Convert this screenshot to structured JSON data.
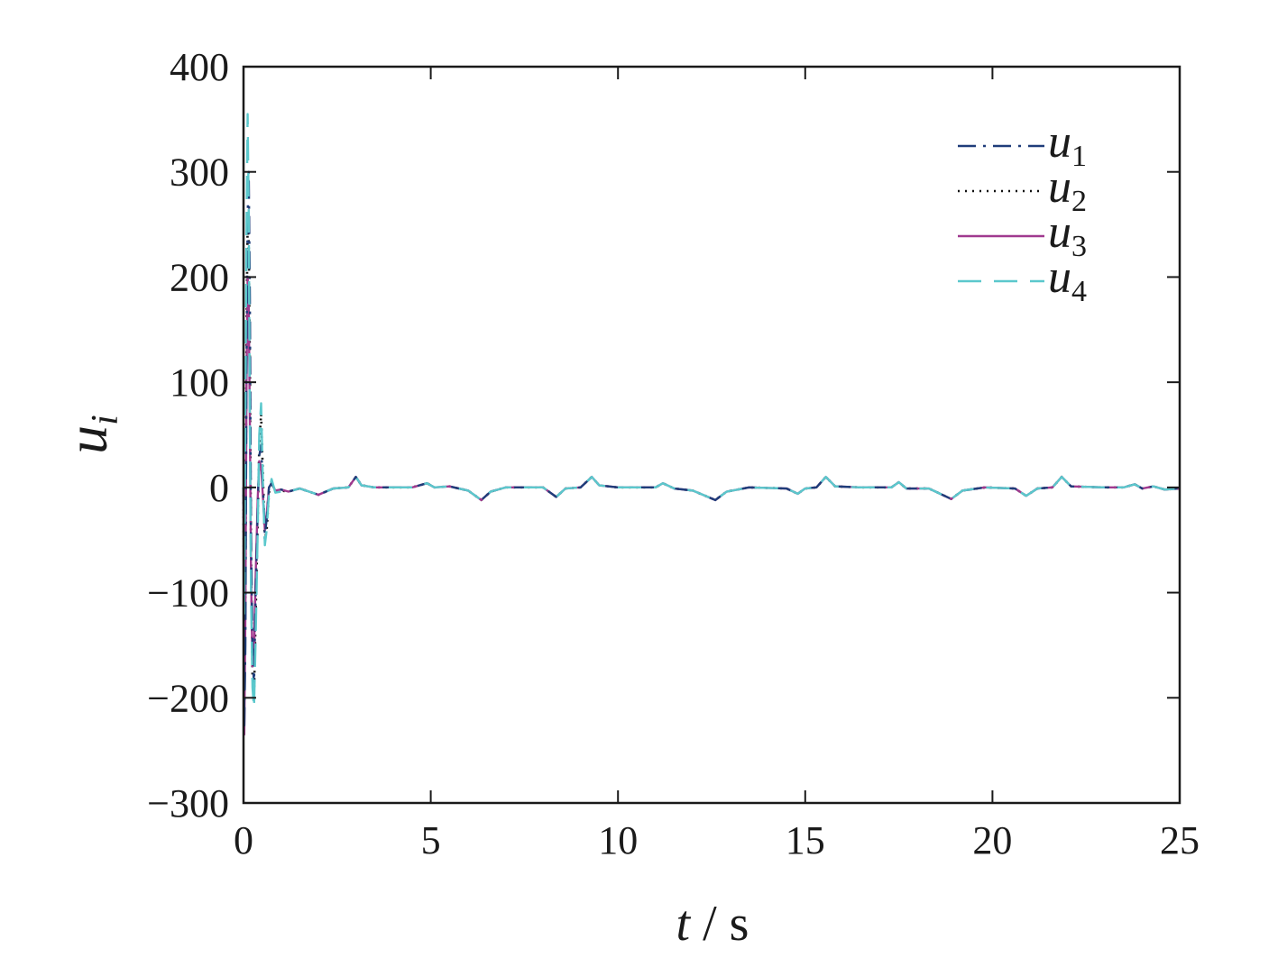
{
  "chart_data": {
    "type": "line",
    "title": "",
    "xlabel": {
      "var": "t",
      "unit": " / s"
    },
    "ylabel": {
      "var": "u",
      "sub": "i"
    },
    "xlim": [
      0,
      25
    ],
    "ylim": [
      -300,
      400
    ],
    "xticks": [
      "0",
      "5",
      "10",
      "15",
      "20",
      "25"
    ],
    "yticks": [
      "400",
      "300",
      "200",
      "100",
      "0",
      "−100",
      "−200",
      "−300"
    ],
    "xtick_values": [
      0,
      5,
      10,
      15,
      20,
      25
    ],
    "ytick_values": [
      400,
      300,
      200,
      100,
      0,
      -100,
      -200,
      -300
    ],
    "grid": false,
    "legend_position": "top-right",
    "series": [
      {
        "name": "u1",
        "name_var": "u",
        "name_sub": "1",
        "color": "#1f3d7a",
        "style": "dashdot",
        "points": [
          [
            0,
            0
          ],
          [
            0.02,
            -230
          ],
          [
            0.05,
            -150
          ],
          [
            0.08,
            120
          ],
          [
            0.11,
            260
          ],
          [
            0.14,
            300
          ],
          [
            0.17,
            180
          ],
          [
            0.2,
            -40
          ],
          [
            0.24,
            -150
          ],
          [
            0.28,
            -190
          ],
          [
            0.32,
            -110
          ],
          [
            0.38,
            -20
          ],
          [
            0.42,
            30
          ],
          [
            0.47,
            40
          ],
          [
            0.52,
            0
          ],
          [
            0.57,
            -45
          ],
          [
            0.62,
            -30
          ],
          [
            0.68,
            0
          ],
          [
            0.75,
            4
          ],
          [
            0.85,
            -3
          ],
          [
            1.0,
            -2
          ],
          [
            1.2,
            -4
          ],
          [
            1.5,
            -1
          ],
          [
            2.0,
            -7
          ],
          [
            2.4,
            -1
          ],
          [
            2.8,
            0
          ],
          [
            3.0,
            10
          ],
          [
            3.15,
            2
          ],
          [
            3.5,
            0
          ],
          [
            4.5,
            0
          ],
          [
            4.9,
            4
          ],
          [
            5.1,
            0
          ],
          [
            5.5,
            1
          ],
          [
            6.0,
            -3
          ],
          [
            6.35,
            -12
          ],
          [
            6.6,
            -4
          ],
          [
            7.0,
            0
          ],
          [
            8.0,
            0
          ],
          [
            8.35,
            -9
          ],
          [
            8.6,
            -1
          ],
          [
            9.0,
            0
          ],
          [
            9.3,
            10
          ],
          [
            9.5,
            2
          ],
          [
            10.0,
            0
          ],
          [
            11.0,
            0
          ],
          [
            11.2,
            4
          ],
          [
            11.5,
            -1
          ],
          [
            12.0,
            -3
          ],
          [
            12.6,
            -12
          ],
          [
            12.9,
            -4
          ],
          [
            13.5,
            0
          ],
          [
            14.5,
            -1
          ],
          [
            14.8,
            -6
          ],
          [
            15.0,
            -1
          ],
          [
            15.3,
            0
          ],
          [
            15.55,
            10
          ],
          [
            15.8,
            1
          ],
          [
            16.5,
            0
          ],
          [
            17.3,
            0
          ],
          [
            17.5,
            5
          ],
          [
            17.7,
            -1
          ],
          [
            18.3,
            -1
          ],
          [
            18.9,
            -11
          ],
          [
            19.2,
            -3
          ],
          [
            19.8,
            0
          ],
          [
            20.6,
            -1
          ],
          [
            20.9,
            -8
          ],
          [
            21.2,
            -1
          ],
          [
            21.6,
            0
          ],
          [
            21.85,
            10
          ],
          [
            22.1,
            1
          ],
          [
            23.0,
            0
          ],
          [
            23.5,
            0
          ],
          [
            23.8,
            3
          ],
          [
            24.0,
            -1
          ],
          [
            24.3,
            1
          ],
          [
            24.6,
            -2
          ],
          [
            25.0,
            -1
          ]
        ]
      },
      {
        "name": "u2",
        "name_var": "u",
        "name_sub": "2",
        "color": "#111111",
        "style": "dotted",
        "points": [
          [
            0,
            0
          ],
          [
            0.02,
            -200
          ],
          [
            0.05,
            -100
          ],
          [
            0.08,
            150
          ],
          [
            0.11,
            250
          ],
          [
            0.14,
            230
          ],
          [
            0.17,
            120
          ],
          [
            0.2,
            -60
          ],
          [
            0.24,
            -180
          ],
          [
            0.28,
            -200
          ],
          [
            0.32,
            -130
          ],
          [
            0.38,
            -30
          ],
          [
            0.42,
            40
          ],
          [
            0.47,
            70
          ],
          [
            0.52,
            10
          ],
          [
            0.57,
            -50
          ],
          [
            0.62,
            -40
          ],
          [
            0.68,
            -5
          ],
          [
            0.75,
            5
          ],
          [
            0.85,
            -4
          ],
          [
            1.0,
            -3
          ],
          [
            1.2,
            -4
          ],
          [
            1.5,
            -1
          ],
          [
            2.0,
            -7
          ],
          [
            2.4,
            -1
          ],
          [
            2.8,
            0
          ],
          [
            3.0,
            10
          ],
          [
            3.15,
            2
          ],
          [
            3.5,
            0
          ],
          [
            4.5,
            0
          ],
          [
            4.9,
            4
          ],
          [
            5.1,
            0
          ],
          [
            5.5,
            1
          ],
          [
            6.0,
            -3
          ],
          [
            6.35,
            -12
          ],
          [
            6.6,
            -4
          ],
          [
            7.0,
            0
          ],
          [
            8.0,
            0
          ],
          [
            8.35,
            -9
          ],
          [
            8.6,
            -1
          ],
          [
            9.0,
            0
          ],
          [
            9.3,
            10
          ],
          [
            9.5,
            2
          ],
          [
            10.0,
            0
          ],
          [
            11.0,
            0
          ],
          [
            11.2,
            4
          ],
          [
            11.5,
            -1
          ],
          [
            12.0,
            -3
          ],
          [
            12.6,
            -12
          ],
          [
            12.9,
            -4
          ],
          [
            13.5,
            0
          ],
          [
            14.5,
            -1
          ],
          [
            14.8,
            -6
          ],
          [
            15.0,
            -1
          ],
          [
            15.3,
            0
          ],
          [
            15.55,
            10
          ],
          [
            15.8,
            1
          ],
          [
            16.5,
            0
          ],
          [
            17.3,
            0
          ],
          [
            17.5,
            5
          ],
          [
            17.7,
            -1
          ],
          [
            18.3,
            -1
          ],
          [
            18.9,
            -11
          ],
          [
            19.2,
            -3
          ],
          [
            19.8,
            0
          ],
          [
            20.6,
            -1
          ],
          [
            20.9,
            -8
          ],
          [
            21.2,
            -1
          ],
          [
            21.6,
            0
          ],
          [
            21.85,
            10
          ],
          [
            22.1,
            1
          ],
          [
            23.0,
            0
          ],
          [
            23.5,
            0
          ],
          [
            23.8,
            3
          ],
          [
            24.0,
            -1
          ],
          [
            24.3,
            1
          ],
          [
            24.6,
            -2
          ],
          [
            25.0,
            -1
          ]
        ]
      },
      {
        "name": "u3",
        "name_var": "u",
        "name_sub": "3",
        "color": "#a0398f",
        "style": "solid",
        "points": [
          [
            0,
            0
          ],
          [
            0.02,
            -235
          ],
          [
            0.05,
            -120
          ],
          [
            0.08,
            100
          ],
          [
            0.11,
            200
          ],
          [
            0.14,
            170
          ],
          [
            0.17,
            60
          ],
          [
            0.2,
            -80
          ],
          [
            0.24,
            -170
          ],
          [
            0.28,
            -160
          ],
          [
            0.32,
            -90
          ],
          [
            0.38,
            -10
          ],
          [
            0.42,
            25
          ],
          [
            0.47,
            20
          ],
          [
            0.52,
            -10
          ],
          [
            0.57,
            -40
          ],
          [
            0.62,
            -25
          ],
          [
            0.68,
            0
          ],
          [
            0.75,
            4
          ],
          [
            0.85,
            -3
          ],
          [
            1.0,
            -2
          ],
          [
            1.2,
            -4
          ],
          [
            1.5,
            -1
          ],
          [
            2.0,
            -7
          ],
          [
            2.4,
            -1
          ],
          [
            2.8,
            0
          ],
          [
            3.0,
            10
          ],
          [
            3.15,
            2
          ],
          [
            3.5,
            0
          ],
          [
            4.5,
            0
          ],
          [
            4.9,
            4
          ],
          [
            5.1,
            0
          ],
          [
            5.5,
            1
          ],
          [
            6.0,
            -3
          ],
          [
            6.35,
            -12
          ],
          [
            6.6,
            -4
          ],
          [
            7.0,
            0
          ],
          [
            8.0,
            0
          ],
          [
            8.35,
            -9
          ],
          [
            8.6,
            -1
          ],
          [
            9.0,
            0
          ],
          [
            9.3,
            10
          ],
          [
            9.5,
            2
          ],
          [
            10.0,
            0
          ],
          [
            11.0,
            0
          ],
          [
            11.2,
            4
          ],
          [
            11.5,
            -1
          ],
          [
            12.0,
            -3
          ],
          [
            12.6,
            -12
          ],
          [
            12.9,
            -4
          ],
          [
            13.5,
            0
          ],
          [
            14.5,
            -1
          ],
          [
            14.8,
            -6
          ],
          [
            15.0,
            -1
          ],
          [
            15.3,
            0
          ],
          [
            15.55,
            10
          ],
          [
            15.8,
            1
          ],
          [
            16.5,
            0
          ],
          [
            17.3,
            0
          ],
          [
            17.5,
            5
          ],
          [
            17.7,
            -1
          ],
          [
            18.3,
            -1
          ],
          [
            18.9,
            -11
          ],
          [
            19.2,
            -3
          ],
          [
            19.8,
            0
          ],
          [
            20.6,
            -1
          ],
          [
            20.9,
            -8
          ],
          [
            21.2,
            -1
          ],
          [
            21.6,
            0
          ],
          [
            21.85,
            10
          ],
          [
            22.1,
            1
          ],
          [
            23.0,
            0
          ],
          [
            23.5,
            0
          ],
          [
            23.8,
            3
          ],
          [
            24.0,
            -1
          ],
          [
            24.3,
            1
          ],
          [
            24.6,
            -2
          ],
          [
            25.0,
            -1
          ]
        ]
      },
      {
        "name": "u4",
        "name_var": "u",
        "name_sub": "4",
        "color": "#5bc8cc",
        "style": "dashed",
        "points": [
          [
            0,
            0
          ],
          [
            0.02,
            -120
          ],
          [
            0.05,
            80
          ],
          [
            0.08,
            240
          ],
          [
            0.11,
            355
          ],
          [
            0.14,
            260
          ],
          [
            0.17,
            60
          ],
          [
            0.2,
            -100
          ],
          [
            0.24,
            -190
          ],
          [
            0.28,
            -210
          ],
          [
            0.32,
            -150
          ],
          [
            0.38,
            -40
          ],
          [
            0.42,
            50
          ],
          [
            0.47,
            80
          ],
          [
            0.52,
            0
          ],
          [
            0.57,
            -55
          ],
          [
            0.62,
            -40
          ],
          [
            0.68,
            -5
          ],
          [
            0.75,
            8
          ],
          [
            0.85,
            -5
          ],
          [
            1.0,
            -4
          ],
          [
            1.2,
            -4
          ],
          [
            1.5,
            -1
          ],
          [
            2.0,
            -7
          ],
          [
            2.4,
            -1
          ],
          [
            2.8,
            0
          ],
          [
            3.0,
            10
          ],
          [
            3.15,
            2
          ],
          [
            3.5,
            0
          ],
          [
            4.5,
            0
          ],
          [
            4.9,
            4
          ],
          [
            5.1,
            0
          ],
          [
            5.5,
            1
          ],
          [
            6.0,
            -3
          ],
          [
            6.35,
            -12
          ],
          [
            6.6,
            -4
          ],
          [
            7.0,
            0
          ],
          [
            8.0,
            0
          ],
          [
            8.35,
            -9
          ],
          [
            8.6,
            -1
          ],
          [
            9.0,
            0
          ],
          [
            9.3,
            10
          ],
          [
            9.5,
            2
          ],
          [
            10.0,
            0
          ],
          [
            11.0,
            0
          ],
          [
            11.2,
            4
          ],
          [
            11.5,
            -1
          ],
          [
            12.0,
            -3
          ],
          [
            12.6,
            -12
          ],
          [
            12.9,
            -4
          ],
          [
            13.5,
            0
          ],
          [
            14.5,
            -1
          ],
          [
            14.8,
            -6
          ],
          [
            15.0,
            -1
          ],
          [
            15.3,
            0
          ],
          [
            15.55,
            10
          ],
          [
            15.8,
            1
          ],
          [
            16.5,
            0
          ],
          [
            17.3,
            0
          ],
          [
            17.5,
            5
          ],
          [
            17.7,
            -1
          ],
          [
            18.3,
            -1
          ],
          [
            18.9,
            -11
          ],
          [
            19.2,
            -3
          ],
          [
            19.8,
            0
          ],
          [
            20.6,
            -1
          ],
          [
            20.9,
            -8
          ],
          [
            21.2,
            -1
          ],
          [
            21.6,
            0
          ],
          [
            21.85,
            10
          ],
          [
            22.1,
            1
          ],
          [
            23.0,
            0
          ],
          [
            23.5,
            0
          ],
          [
            23.8,
            3
          ],
          [
            24.0,
            -1
          ],
          [
            24.3,
            1
          ],
          [
            24.6,
            -2
          ],
          [
            25.0,
            -1
          ]
        ]
      }
    ]
  }
}
